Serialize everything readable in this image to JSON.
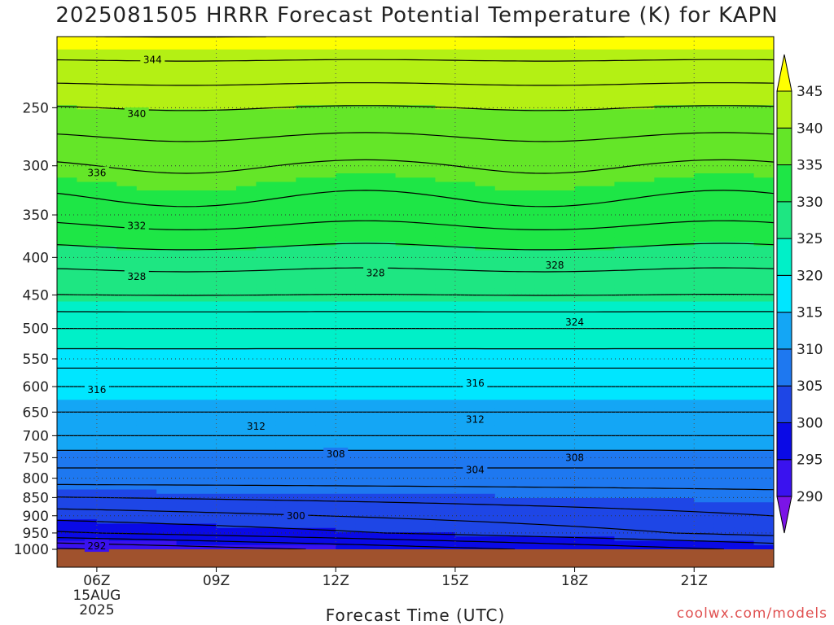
{
  "chart_data": {
    "type": "heatmap",
    "title": "2025081505 HRRR Forecast Potential Temperature (K) for KAPN",
    "xlabel": "Forecast Time (UTC)",
    "ylabel": "",
    "credit": "coolwx.com/models",
    "x_ticks": [
      {
        "label": "06Z",
        "sub": [
          "15AUG",
          "2025"
        ],
        "hour": 6
      },
      {
        "label": "09Z",
        "hour": 9
      },
      {
        "label": "12Z",
        "hour": 12
      },
      {
        "label": "15Z",
        "hour": 15
      },
      {
        "label": "18Z",
        "hour": 18
      },
      {
        "label": "21Z",
        "hour": 21
      }
    ],
    "xlim": [
      5,
      23
    ],
    "ylim": [
      1000,
      200
    ],
    "y_scale": "log-pressure (hPa)",
    "y_ticks": [
      250,
      300,
      350,
      400,
      450,
      500,
      550,
      600,
      650,
      700,
      750,
      800,
      850,
      900,
      950,
      1000
    ],
    "grid": "dotted, at major ticks",
    "colorbar": {
      "levels": [
        290,
        295,
        300,
        305,
        310,
        315,
        320,
        325,
        330,
        335,
        340,
        345
      ],
      "labels": [
        "290",
        "295",
        "300",
        "305",
        "310",
        "315",
        "320",
        "325",
        "330",
        "335",
        "340",
        "345"
      ],
      "colors": [
        "#7b14e6",
        "#3a12ef",
        "#0a0ae6",
        "#1e46e6",
        "#1e78f0",
        "#14a6f5",
        "#00e6ff",
        "#00f0c8",
        "#1ee682",
        "#1ee646",
        "#64e628",
        "#b4f014",
        "#ffff00"
      ],
      "extend": "both",
      "position": "right"
    },
    "surface_color": "#a0522d",
    "theta_profile": {
      "pressure": [
        1000,
        950,
        900,
        850,
        800,
        750,
        700,
        650,
        600,
        550,
        500,
        450,
        400,
        350,
        300,
        250,
        200
      ],
      "theta_06Z": [
        292,
        298,
        301,
        304,
        307,
        309,
        312,
        314,
        316,
        319,
        322,
        326,
        329,
        333,
        336,
        340,
        346
      ]
    },
    "contour_labels": [
      {
        "text": "344",
        "hour": 7.4,
        "p": 215
      },
      {
        "text": "340",
        "hour": 7.0,
        "p": 255
      },
      {
        "text": "336",
        "hour": 6.0,
        "p": 307
      },
      {
        "text": "332",
        "hour": 7.0,
        "p": 362
      },
      {
        "text": "328",
        "hour": 7.0,
        "p": 425
      },
      {
        "text": "328",
        "hour": 13.0,
        "p": 420
      },
      {
        "text": "328",
        "hour": 17.5,
        "p": 410
      },
      {
        "text": "324",
        "hour": 18.0,
        "p": 490
      },
      {
        "text": "316",
        "hour": 6.0,
        "p": 606
      },
      {
        "text": "316",
        "hour": 15.5,
        "p": 594
      },
      {
        "text": "312",
        "hour": 10.0,
        "p": 680
      },
      {
        "text": "312",
        "hour": 15.5,
        "p": 665
      },
      {
        "text": "308",
        "hour": 12.0,
        "p": 742
      },
      {
        "text": "308",
        "hour": 18.0,
        "p": 750
      },
      {
        "text": "304",
        "hour": 15.5,
        "p": 780
      },
      {
        "text": "300",
        "hour": 11.0,
        "p": 900
      },
      {
        "text": "292",
        "hour": 6.0,
        "p": 990
      }
    ]
  }
}
